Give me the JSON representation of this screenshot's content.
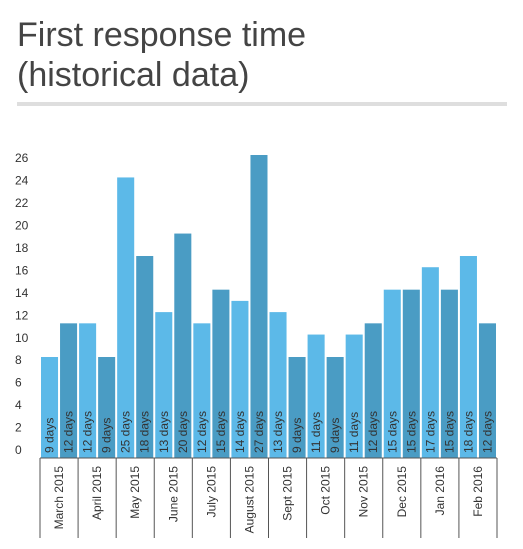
{
  "chart_data": {
    "type": "bar",
    "title": [
      "First response time",
      "(historical data)"
    ],
    "categories": [
      "March 2015",
      null,
      "April 2015",
      null,
      "May 2015",
      null,
      "June 2015",
      null,
      "July 2015",
      null,
      "August 2015",
      null,
      "Sept 2015",
      null,
      "Oct 2015",
      null,
      "Nov 2015",
      null,
      "Dec 2015",
      null,
      "Jan 2016",
      null,
      "Feb 2016",
      null
    ],
    "values": [
      9,
      12,
      12,
      9,
      25,
      18,
      13,
      20,
      12,
      15,
      14,
      27,
      13,
      9,
      11,
      9,
      11,
      12,
      15,
      15,
      17,
      15,
      18,
      12
    ],
    "value_labels": [
      "9 days",
      "12 days",
      "12 days",
      "9 days",
      "25 days",
      "18 days",
      "13 days",
      "20 days",
      "12 days",
      "15 days",
      "14 days",
      "27 days",
      "13 days",
      "9 days",
      "11 days",
      "9 days",
      "11 days",
      "12 days",
      "15 days",
      "15 days",
      "17 days",
      "15 days",
      "18 days",
      "12 days"
    ],
    "colors": [
      "#5cb9e8",
      "#4a9cc4"
    ],
    "ylim": [
      0,
      27
    ],
    "yticks": [
      0,
      2,
      4,
      6,
      8,
      10,
      12,
      14,
      16,
      18,
      20,
      22,
      24,
      26
    ],
    "grid": false
  }
}
